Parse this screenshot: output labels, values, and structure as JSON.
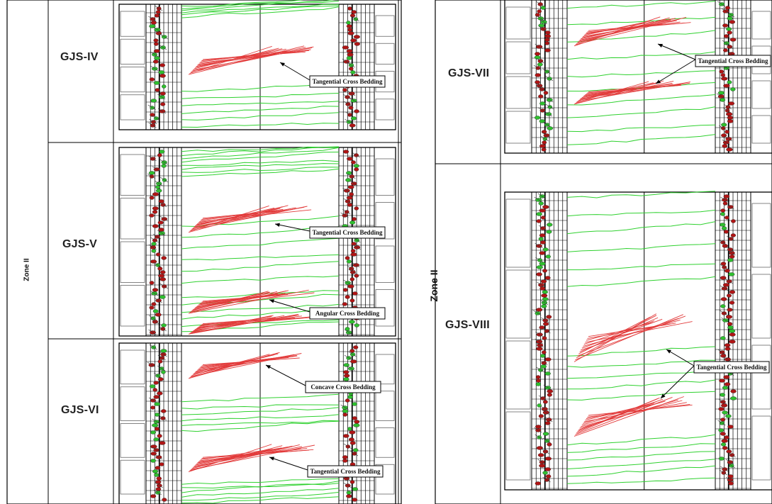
{
  "left_panel": {
    "zone_label": "Zone II",
    "rows": [
      {
        "well": "GJS-IV",
        "annotations": [
          "Tangential Cross Bedding"
        ]
      },
      {
        "well": "GJS-V",
        "annotations": [
          "Tangential Cross Bedding",
          "Angular Cross Bedding"
        ]
      },
      {
        "well": "GJS-VI",
        "annotations": [
          "Concave Cross Bedding",
          "Tangential Cross Bedding"
        ]
      }
    ]
  },
  "right_panel": {
    "zone_label": "Zone II",
    "rows": [
      {
        "well": "GJS-VII",
        "annotations": [
          "Tangential Cross Bedding"
        ]
      },
      {
        "well": "GJS-VIII",
        "annotations": [
          "Tangential Cross Bedding"
        ]
      }
    ]
  },
  "colors": {
    "bedding_lines": "#2fd12f",
    "cross_bedding": "#e23b3b",
    "well_log_red": "#b01515",
    "well_log_green": "#2fbf2f",
    "frame": "#000000"
  }
}
